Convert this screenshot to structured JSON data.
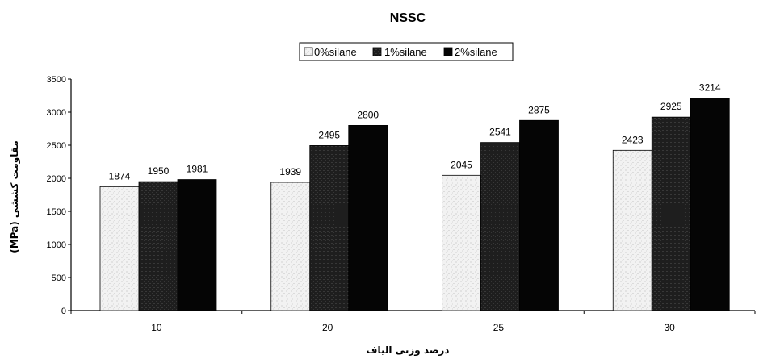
{
  "chart_data": {
    "type": "bar",
    "title": "NSSC",
    "xlabel": "درصد وزنی الیاف",
    "ylabel": "مقاومت کششی (MPa)",
    "categories": [
      "10",
      "20",
      "25",
      "30"
    ],
    "series": [
      {
        "name": "0%silane",
        "values": [
          1874,
          1939,
          2045,
          2423
        ],
        "color": "#e6e6e6"
      },
      {
        "name": "1%silane",
        "values": [
          1950,
          2495,
          2541,
          2925
        ],
        "color": "#2a2a2a"
      },
      {
        "name": "2%silane",
        "values": [
          1981,
          2800,
          2875,
          3214
        ],
        "color": "#050505"
      }
    ],
    "ylim": [
      0,
      3500
    ],
    "yticks": [
      0,
      500,
      1000,
      1500,
      2000,
      2500,
      3000,
      3500
    ],
    "grid": false,
    "legend_position": "top-center"
  }
}
